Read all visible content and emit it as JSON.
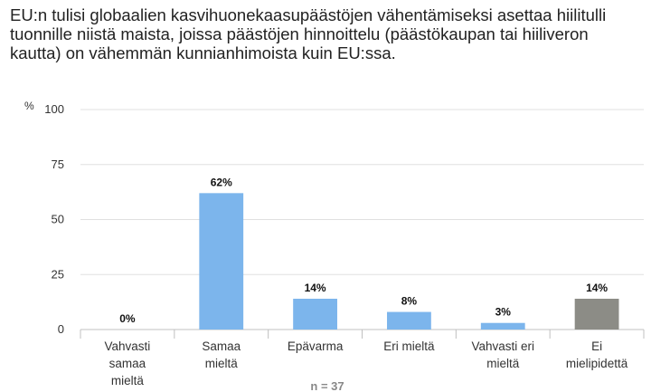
{
  "chart_data": {
    "type": "bar",
    "title": "EU:n tulisi globaalien kasvihuonekaasupäästöjen vähentämiseksi asettaa hiilitulli tuonnille niistä maista, joissa päästöjen hinnoittelu (päästökaupan tai hiiliveron kautta) on vähemmän kunnianhimoista kuin EU:ssa.",
    "ylabel": "%",
    "ylim": [
      0,
      100
    ],
    "yticks": [
      "0",
      "25",
      "50",
      "75",
      "100"
    ],
    "categories": [
      [
        "Vahvasti",
        "samaa",
        "mieltä"
      ],
      [
        "Samaa",
        "mieltä"
      ],
      [
        "Epävarma"
      ],
      [
        "Eri mieltä"
      ],
      [
        "Vahvasti eri",
        "mieltä"
      ],
      [
        "Ei",
        "mielipidettä"
      ]
    ],
    "values": [
      0,
      62,
      14,
      8,
      3,
      14
    ],
    "data_labels": [
      "0%",
      "62%",
      "14%",
      "8%",
      "3%",
      "14%"
    ],
    "colors": [
      "#7cb5ec",
      "#7cb5ec",
      "#7cb5ec",
      "#7cb5ec",
      "#7cb5ec",
      "#8c8c86"
    ],
    "grid": true,
    "note": "n = 37"
  }
}
